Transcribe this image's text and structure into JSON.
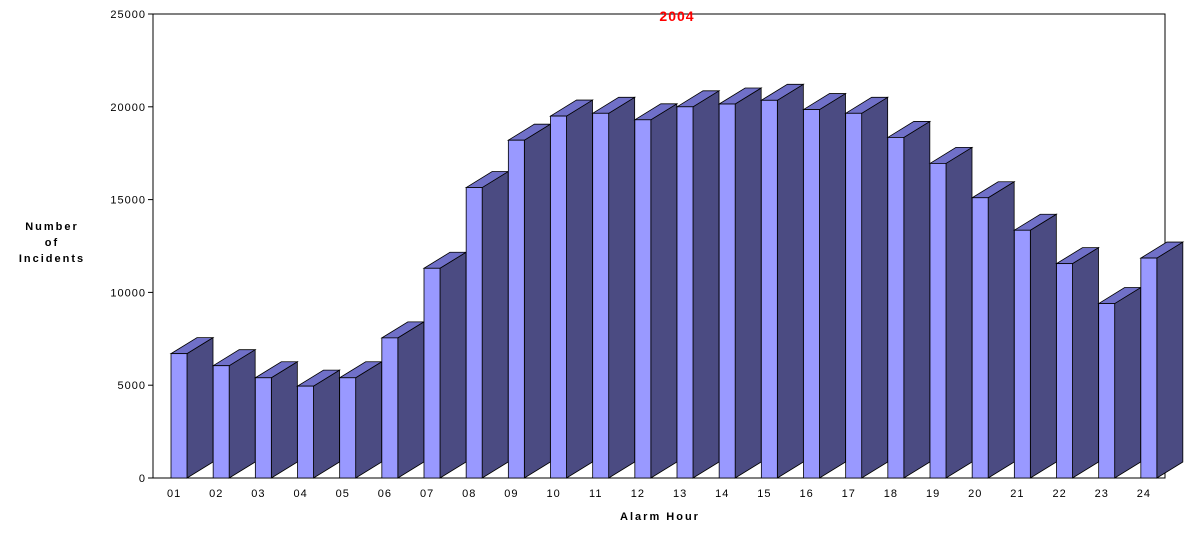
{
  "chart_data": {
    "type": "bar",
    "title": "",
    "subtitle": "2004",
    "xlabel": "Alarm Hour",
    "ylabel": [
      "Number",
      "of",
      "Incidents"
    ],
    "categories": [
      "01",
      "02",
      "03",
      "04",
      "05",
      "06",
      "07",
      "08",
      "09",
      "10",
      "11",
      "12",
      "13",
      "14",
      "15",
      "16",
      "17",
      "18",
      "19",
      "20",
      "21",
      "22",
      "23",
      "24"
    ],
    "values": [
      6700,
      6050,
      5400,
      4950,
      5400,
      7550,
      11300,
      15650,
      18200,
      19500,
      19650,
      19300,
      20000,
      20150,
      20350,
      19850,
      19650,
      18350,
      16950,
      15100,
      13350,
      11550,
      9400,
      11850
    ],
    "ylim": [
      0,
      25000
    ],
    "yticks": [
      "0",
      "5000",
      "10000",
      "15000",
      "20000",
      "25000"
    ],
    "grid": false,
    "legend": "none",
    "colors": {
      "bar_front": "#9999ff",
      "bar_side": "#4b4b82",
      "bar_top": "#7070c8",
      "outline": "#000000",
      "subtitle": "#ff0000"
    }
  }
}
